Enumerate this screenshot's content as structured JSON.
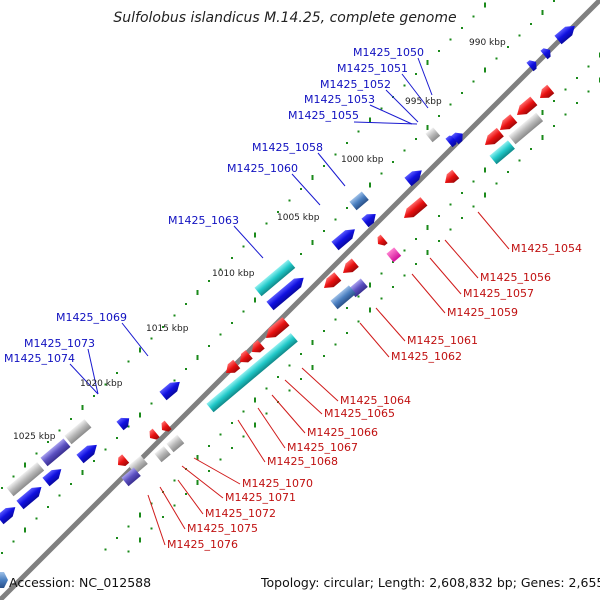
{
  "title": "Sulfolobus islandicus M.14.25, complete genome",
  "footer": {
    "accession": "Accession: NC_012588",
    "summary": "Topology: circular; Length: 2,608,832 bp; Genes: 2,655"
  },
  "scale_labels": [
    "990 kbp",
    "995 kbp",
    "1000 kbp",
    "1005 kbp",
    "1010 kbp",
    "1015 kbp",
    "1020 kbp",
    "1025 kbp"
  ],
  "upper_gene_labels": [
    "M1425_1050",
    "M1425_1051",
    "M1425_1052",
    "M1425_1053",
    "M1425_1055",
    "M1425_1058",
    "M1425_1060",
    "M1425_1063",
    "M1425_1069",
    "M1425_1073",
    "M1425_1074"
  ],
  "lower_gene_labels": [
    "M1425_1054",
    "M1425_1056",
    "M1425_1057",
    "M1425_1059",
    "M1425_1061",
    "M1425_1062",
    "M1425_1064",
    "M1425_1065",
    "M1425_1066",
    "M1425_1067",
    "M1425_1068",
    "M1425_1070",
    "M1425_1071",
    "M1425_1072",
    "M1425_1075",
    "M1425_1076"
  ],
  "colors": {
    "forward_gene": "#1010e0",
    "reverse_gene": "#e81010",
    "rna_gene": "#20c8c8",
    "pseudo_gene": "#b0b0b0",
    "other_gene": "#5a4fc0",
    "upper_label": "#1010c0",
    "lower_label": "#c01010",
    "backbone": "#808080",
    "scale_dot": "#1a8a1a"
  }
}
